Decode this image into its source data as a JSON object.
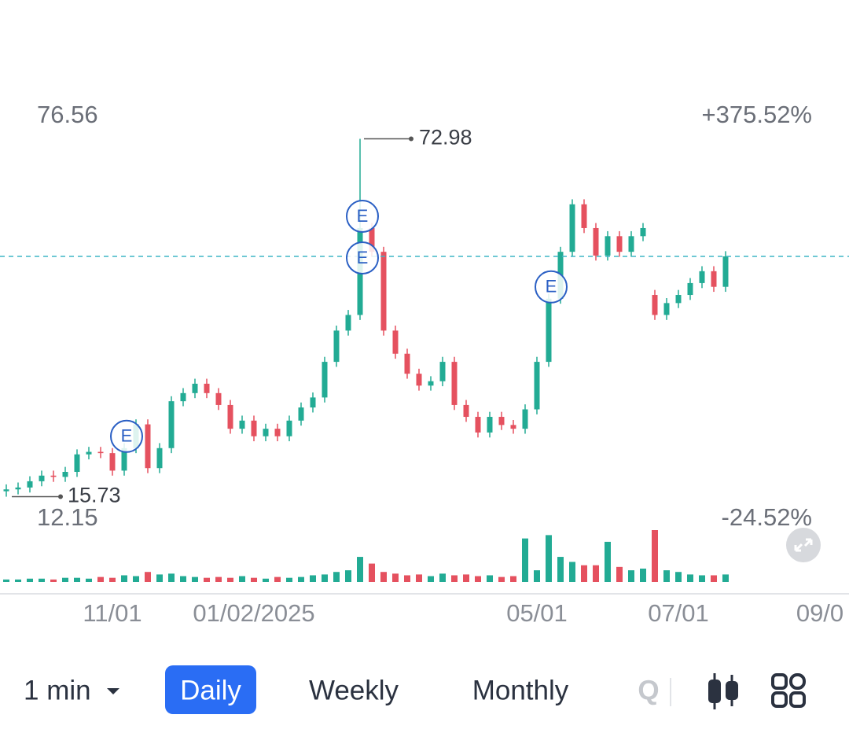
{
  "chart_data": {
    "type": "candlestick",
    "open": [
      16.6,
      16.9,
      17.2,
      18.2,
      19.1,
      18.9,
      19.7,
      22.5,
      22.9,
      22.7,
      19.9,
      23.5,
      27.3,
      20.3,
      23.5,
      31.0,
      32.3,
      33.8,
      32.3,
      30.4,
      26.6,
      27.9,
      25.4,
      26.6,
      25.4,
      27.9,
      30.0,
      31.6,
      37.3,
      42.3,
      44.8,
      58.7,
      54.9,
      42.3,
      38.6,
      35.4,
      33.5,
      34.2,
      37.3,
      30.4,
      28.5,
      26.0,
      28.5,
      27.2,
      26.6,
      29.7,
      37.3,
      47.4,
      54.9,
      62.5,
      58.7,
      54.3,
      57.4,
      54.9,
      57.4,
      48.0,
      44.8,
      46.7,
      48.0,
      49.9,
      51.8,
      49.3
    ],
    "high": [
      17.7,
      18.0,
      19.0,
      19.9,
      19.9,
      20.5,
      23.3,
      23.7,
      23.7,
      23.5,
      24.3,
      28.1,
      28.1,
      24.3,
      31.8,
      33.1,
      34.6,
      34.6,
      33.1,
      31.2,
      28.7,
      28.7,
      27.4,
      27.4,
      28.7,
      30.8,
      32.4,
      38.1,
      43.1,
      45.6,
      72.98,
      59.5,
      55.7,
      43.1,
      39.4,
      36.2,
      35.0,
      38.1,
      38.1,
      31.2,
      29.3,
      29.3,
      29.3,
      28.0,
      30.5,
      38.1,
      48.2,
      55.7,
      63.3,
      63.3,
      59.5,
      58.2,
      58.2,
      58.2,
      59.5,
      48.8,
      47.5,
      48.8,
      50.7,
      52.6,
      52.6,
      55.0
    ],
    "low": [
      15.73,
      16.1,
      16.4,
      17.4,
      18.1,
      18.1,
      18.9,
      21.7,
      21.9,
      19.1,
      19.1,
      22.7,
      19.5,
      19.5,
      22.7,
      30.2,
      31.5,
      31.5,
      29.6,
      25.8,
      25.8,
      24.6,
      24.6,
      24.6,
      24.6,
      27.1,
      29.2,
      30.8,
      36.5,
      41.5,
      44.0,
      54.1,
      41.5,
      37.8,
      34.6,
      32.7,
      32.7,
      33.4,
      29.6,
      27.7,
      25.2,
      25.2,
      26.4,
      25.8,
      25.8,
      28.9,
      36.5,
      46.6,
      54.1,
      57.9,
      53.5,
      53.5,
      54.1,
      54.1,
      56.6,
      44.0,
      44.0,
      45.9,
      47.2,
      49.1,
      48.5,
      48.5
    ],
    "close": [
      16.9,
      17.2,
      18.2,
      19.1,
      18.9,
      19.7,
      22.5,
      22.9,
      22.7,
      19.9,
      23.5,
      27.3,
      20.3,
      23.5,
      31.0,
      32.3,
      33.8,
      32.3,
      30.4,
      26.6,
      27.9,
      25.4,
      26.6,
      25.4,
      27.9,
      30.0,
      31.6,
      37.3,
      42.3,
      44.8,
      58.7,
      54.9,
      42.3,
      38.6,
      35.4,
      33.5,
      34.2,
      37.3,
      30.4,
      28.5,
      26.0,
      28.5,
      27.2,
      26.6,
      29.7,
      37.3,
      47.4,
      54.9,
      62.5,
      58.7,
      54.3,
      57.4,
      54.9,
      57.4,
      58.7,
      44.8,
      46.7,
      48.0,
      49.9,
      51.8,
      49.3,
      54.17
    ],
    "volume": [
      3,
      3,
      4,
      4,
      3,
      5,
      5,
      4,
      6,
      5,
      8,
      7,
      12,
      9,
      10,
      7,
      6,
      5,
      6,
      5,
      7,
      5,
      4,
      6,
      5,
      6,
      8,
      9,
      12,
      14,
      30,
      22,
      12,
      10,
      8,
      9,
      7,
      10,
      8,
      9,
      7,
      8,
      6,
      7,
      52,
      14,
      56,
      30,
      24,
      20,
      20,
      48,
      18,
      14,
      16,
      62,
      14,
      12,
      9,
      8,
      8,
      9
    ],
    "up_color": "#22ab94",
    "down_color": "#e5515f",
    "ylim": [
      12.15,
      76.56
    ],
    "yticks": [
      76.56,
      12.15
    ],
    "y2lim": [
      -24.52,
      375.52
    ],
    "y2ticks": [
      {
        "value": 375.52,
        "label": "+375.52%"
      },
      {
        "value": -24.52,
        "label": "-24.52%"
      }
    ],
    "xticks": [
      {
        "value": 9,
        "label": "11/01"
      },
      {
        "value": 21,
        "label": "01/02/2025"
      },
      {
        "value": 45,
        "label": "05/01"
      },
      {
        "value": 57,
        "label": "07/01"
      },
      {
        "value": 69,
        "label": "09/0"
      }
    ],
    "events": [
      {
        "index": 10,
        "label": "E"
      },
      {
        "index": 30,
        "label": "E"
      },
      {
        "index": 31,
        "label": "E"
      },
      {
        "index": 46,
        "label": "E"
      }
    ],
    "high_marker_index": 30,
    "low_marker_index": 0,
    "last_price_line": true
  },
  "toolbar": {
    "interval": "1 min",
    "tabs": [
      "Daily",
      "Weekly",
      "Monthly",
      "Q"
    ],
    "selected_tab": 0
  }
}
